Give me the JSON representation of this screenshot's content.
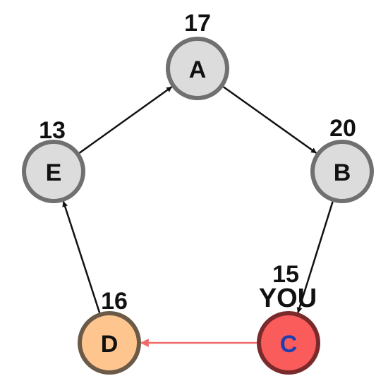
{
  "nodes": [
    {
      "id": "A",
      "label": "A",
      "score": "17",
      "fill": "#dcdcdc",
      "stroke": "#707070",
      "text_color": "#111111"
    },
    {
      "id": "B",
      "label": "B",
      "score": "20",
      "fill": "#dcdcdc",
      "stroke": "#707070",
      "text_color": "#111111"
    },
    {
      "id": "C",
      "label": "C",
      "score": "15",
      "fill": "#fa5c5c",
      "stroke": "#7a2a2a",
      "text_color": "#1f3fae",
      "tag": "YOU"
    },
    {
      "id": "D",
      "label": "D",
      "score": "16",
      "fill": "#ffc58f",
      "stroke": "#6b5a47",
      "text_color": "#111111"
    },
    {
      "id": "E",
      "label": "E",
      "score": "13",
      "fill": "#dcdcdc",
      "stroke": "#707070",
      "text_color": "#111111"
    }
  ],
  "edges": [
    {
      "from": "A",
      "to": "B",
      "color": "#111111"
    },
    {
      "from": "B",
      "to": "C",
      "color": "#111111"
    },
    {
      "from": "C",
      "to": "D",
      "color": "#f06a6a"
    },
    {
      "from": "D",
      "to": "E",
      "color": "#111111"
    },
    {
      "from": "E",
      "to": "A",
      "color": "#111111"
    }
  ]
}
